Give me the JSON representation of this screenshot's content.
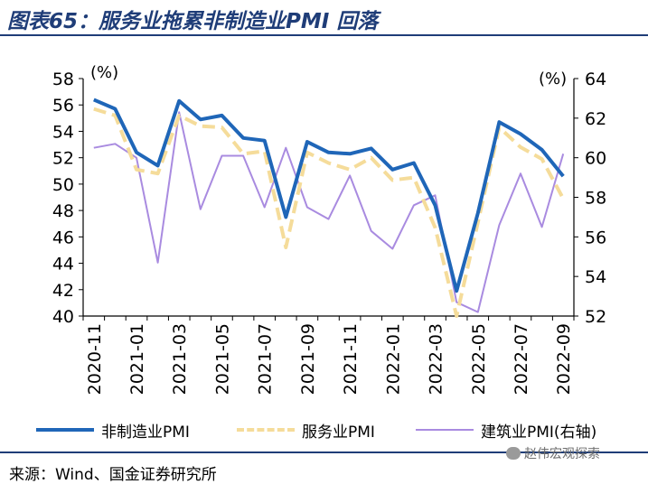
{
  "header": {
    "title": "图表65：服务业拖累非制造业PMI 回落"
  },
  "footer": {
    "source": "来源：Wind、国金证券研究所",
    "watermark": "赵伟宏观探索"
  },
  "colors": {
    "title": "#1f3d78",
    "non_manufacturing": "#1f66b8",
    "services": "#f5dc9a",
    "construction": "#a98be0"
  },
  "chart_data": {
    "type": "line",
    "categories": [
      "2020-11",
      "2020-12",
      "2021-01",
      "2021-02",
      "2021-03",
      "2021-04",
      "2021-05",
      "2021-06",
      "2021-07",
      "2021-08",
      "2021-09",
      "2021-10",
      "2021-11",
      "2021-12",
      "2022-01",
      "2022-02",
      "2022-03",
      "2022-04",
      "2022-05",
      "2022-06",
      "2022-07",
      "2022-08",
      "2022-09"
    ],
    "tick_labels": [
      "2020-11",
      "2021-01",
      "2021-03",
      "2021-05",
      "2021-07",
      "2021-09",
      "2021-11",
      "2022-01",
      "2022-03",
      "2022-05",
      "2022-07",
      "2022-09"
    ],
    "left_unit": "(%)",
    "right_unit": "(%)",
    "ylim_left": [
      40,
      58
    ],
    "ylim_right": [
      52,
      64
    ],
    "left_ticks": [
      40,
      42,
      44,
      46,
      48,
      50,
      52,
      54,
      56,
      58
    ],
    "right_ticks": [
      52,
      54,
      56,
      58,
      60,
      62,
      64
    ],
    "grid": false,
    "legend_position": "bottom",
    "series": [
      {
        "name": "非制造业PMI",
        "axis": "left",
        "style": "solid",
        "color": "#1f66b8",
        "values": [
          56.4,
          55.7,
          52.4,
          51.4,
          56.3,
          54.9,
          55.2,
          53.5,
          53.3,
          47.5,
          53.2,
          52.4,
          52.3,
          52.7,
          51.1,
          51.6,
          48.4,
          41.9,
          47.8,
          54.7,
          53.8,
          52.6,
          50.6
        ]
      },
      {
        "name": "服务业PMI",
        "axis": "left",
        "style": "dashed",
        "color": "#f5dc9a",
        "values": [
          55.7,
          55.2,
          51.1,
          50.8,
          55.2,
          54.4,
          54.3,
          52.3,
          52.5,
          45.2,
          52.4,
          51.6,
          51.1,
          52.0,
          50.3,
          50.5,
          46.7,
          40.0,
          47.1,
          54.3,
          52.8,
          51.9,
          48.9
        ]
      },
      {
        "name": "建筑业PMI(右轴)",
        "axis": "right",
        "style": "solid",
        "color": "#a98be0",
        "values": [
          60.5,
          60.7,
          60.0,
          54.7,
          62.3,
          57.4,
          60.1,
          60.1,
          57.5,
          60.5,
          57.5,
          56.9,
          59.1,
          56.3,
          55.4,
          57.6,
          58.1,
          52.7,
          52.2,
          56.6,
          59.2,
          56.5,
          60.2
        ]
      }
    ]
  }
}
